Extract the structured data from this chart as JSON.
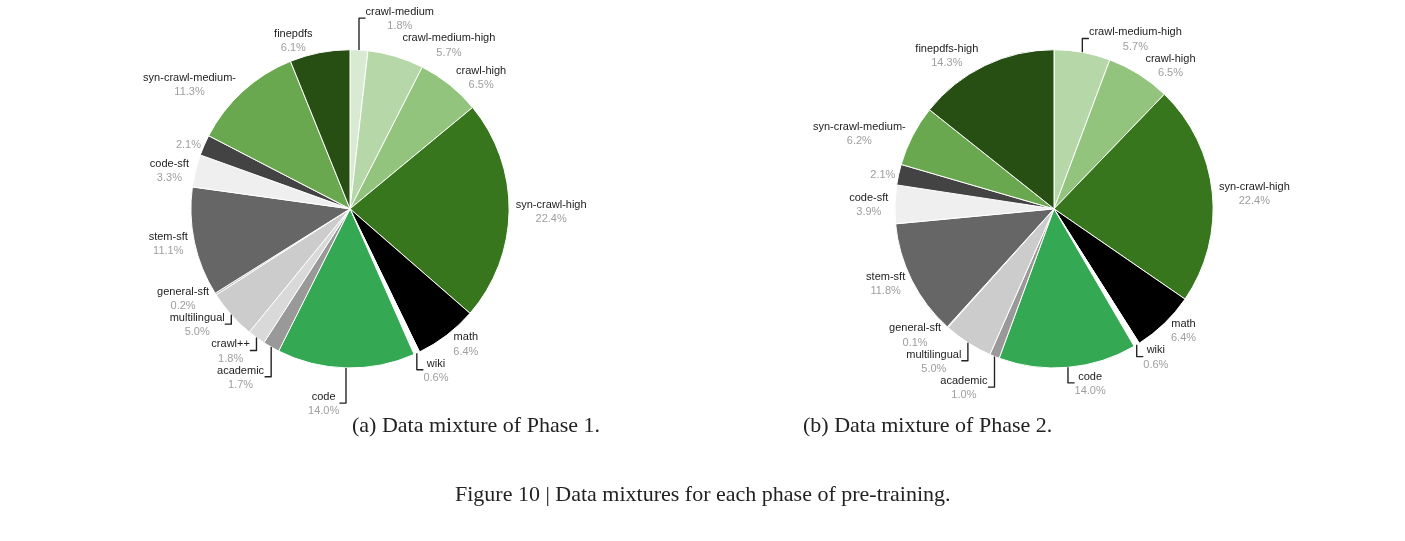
{
  "chart_data": [
    {
      "type": "pie",
      "title": "(a) Data mixture of Phase 1.",
      "categories": [
        "crawl-medium",
        "crawl-medium-high",
        "crawl-high",
        "syn-crawl-high",
        "math",
        "wiki",
        "code",
        "academic",
        "crawl++",
        "multilingual",
        "general-sft",
        "stem-sft",
        "code-sft",
        null,
        "syn-crawl-medium-",
        "finepdfs"
      ],
      "values": [
        1.8,
        5.7,
        6.5,
        22.4,
        6.4,
        0.6,
        14.0,
        1.7,
        1.8,
        5.0,
        0.2,
        11.1,
        3.3,
        2.1,
        11.3,
        6.1
      ],
      "value_labels": [
        "1.8%",
        "5.7%",
        "6.5%",
        "22.4%",
        "6.4%",
        "0.6%",
        "14.0%",
        "1.7%",
        "1.8%",
        "5.0%",
        "0.2%",
        "11.1%",
        "3.3%",
        "2.1%",
        "11.3%",
        "6.1%"
      ],
      "colors": [
        "#d9ead3",
        "#b6d7a8",
        "#93c47d",
        "#38761d",
        "#000000",
        "#ffffff",
        "#34a853",
        "#999999",
        "#d9d9d9",
        "#cccccc",
        "#b7b7b7",
        "#666666",
        "#efefef",
        "#434343",
        "#6aa84f",
        "#274e13"
      ],
      "annotations": [
        "Figure 10 | Data mixtures for each phase of pre-training."
      ]
    },
    {
      "type": "pie",
      "title": "(b) Data mixture of Phase 2.",
      "categories": [
        "crawl-medium-high",
        "crawl-high",
        "syn-crawl-high",
        "math",
        "wiki",
        "code",
        "academic",
        "multilingual",
        "general-sft",
        "stem-sft",
        "code-sft",
        null,
        "syn-crawl-medium-",
        "finepdfs-high"
      ],
      "values": [
        5.7,
        6.5,
        22.4,
        6.4,
        0.6,
        14.0,
        1.0,
        5.0,
        0.1,
        11.8,
        3.9,
        2.1,
        6.2,
        14.3
      ],
      "value_labels": [
        "5.7%",
        "6.5%",
        "22.4%",
        "6.4%",
        "0.6%",
        "14.0%",
        "1.0%",
        "5.0%",
        "0.1%",
        "11.8%",
        "3.9%",
        "2.1%",
        "6.2%",
        "14.3%"
      ],
      "colors": [
        "#b6d7a8",
        "#93c47d",
        "#38761d",
        "#000000",
        "#ffffff",
        "#34a853",
        "#999999",
        "#cccccc",
        "#b7b7b7",
        "#666666",
        "#efefef",
        "#434343",
        "#6aa84f",
        "#274e13"
      ]
    }
  ]
}
